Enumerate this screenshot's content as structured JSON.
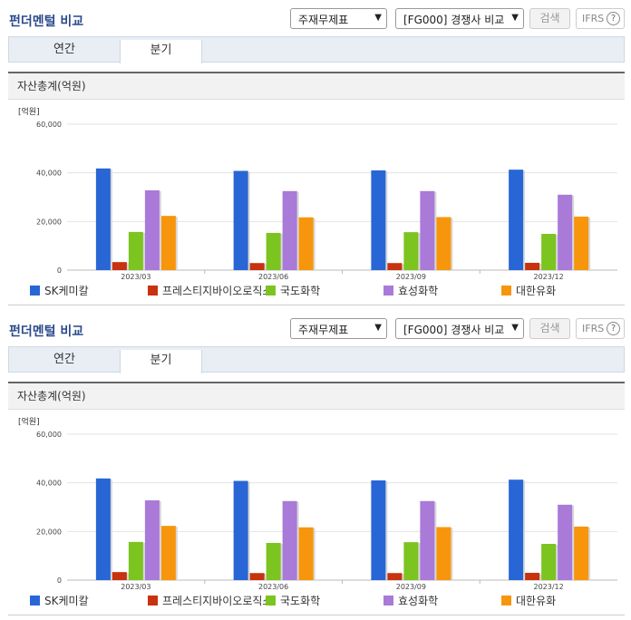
{
  "header": {
    "title": "펀더멘털 비교",
    "select_1": "주재무제표",
    "select_2": "[FG000] 경쟁사 비교",
    "search_label": "검색",
    "ifrs_label": "IFRS",
    "help_label": "?"
  },
  "tabs": [
    {
      "label": "연간",
      "selected": false
    },
    {
      "label": "분기",
      "selected": true
    }
  ],
  "section_title": "자산총계(억원)",
  "colors": {
    "title": "#2b4a8b",
    "tab_bg": "#e9eef5",
    "section_bg": "#f2f2f2"
  },
  "chart_data": {
    "type": "bar",
    "unit_label": "[억원]",
    "categories": [
      "2023/03",
      "2023/06",
      "2023/09",
      "2023/12"
    ],
    "ylim": [
      0,
      60000
    ],
    "yticks": [
      "60,000",
      "40,000",
      "20,000",
      "0"
    ],
    "ytick_values": [
      60000,
      40000,
      20000,
      0
    ],
    "series": [
      {
        "name": "SK케미칼",
        "color": "#2866d6",
        "values": [
          41800,
          40800,
          41000,
          41300
        ]
      },
      {
        "name": "프레스티지바이오로직스",
        "color": "#c8320f",
        "values": [
          3300,
          2900,
          2900,
          3000
        ]
      },
      {
        "name": "국도화학",
        "color": "#7cc41f",
        "values": [
          15700,
          15300,
          15600,
          14900
        ]
      },
      {
        "name": "효성화학",
        "color": "#a97ad8",
        "values": [
          32800,
          32500,
          32500,
          31000
        ]
      },
      {
        "name": "대한유화",
        "color": "#f7960c",
        "values": [
          22300,
          21700,
          21800,
          22000
        ]
      }
    ]
  }
}
